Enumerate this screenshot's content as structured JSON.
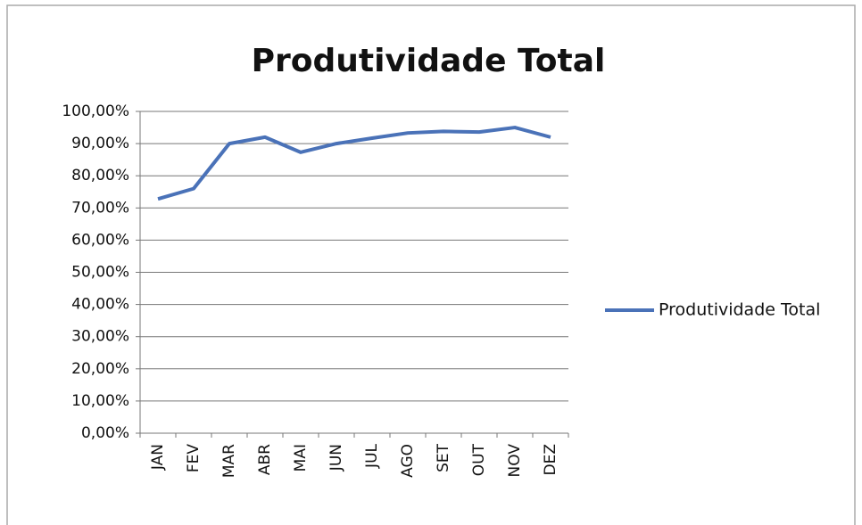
{
  "chart_data": {
    "type": "line",
    "title": "Produtividade Total",
    "categories": [
      "JAN",
      "FEV",
      "MAR",
      "ABR",
      "MAI",
      "JUN",
      "JUL",
      "AGO",
      "SET",
      "OUT",
      "NOV",
      "DEZ"
    ],
    "series": [
      {
        "name": "Produtividade Total",
        "color": "#4a72b8",
        "values": [
          72.8,
          76,
          90,
          92,
          87.3,
          90,
          91.7,
          93.3,
          93.8,
          93.6,
          95,
          92
        ]
      }
    ],
    "ylim": [
      0,
      100
    ],
    "yticks": [
      {
        "value": 0,
        "label": "0,00%"
      },
      {
        "value": 10,
        "label": "10,00%"
      },
      {
        "value": 20,
        "label": "20,00%"
      },
      {
        "value": 30,
        "label": "30,00%"
      },
      {
        "value": 40,
        "label": "40,00%"
      },
      {
        "value": 50,
        "label": "50,00%"
      },
      {
        "value": 60,
        "label": "60,00%"
      },
      {
        "value": 70,
        "label": "70,00%"
      },
      {
        "value": 80,
        "label": "80,00%"
      },
      {
        "value": 90,
        "label": "90,00%"
      },
      {
        "value": 100,
        "label": "100,00%"
      }
    ],
    "grid": true,
    "legend": "right"
  }
}
